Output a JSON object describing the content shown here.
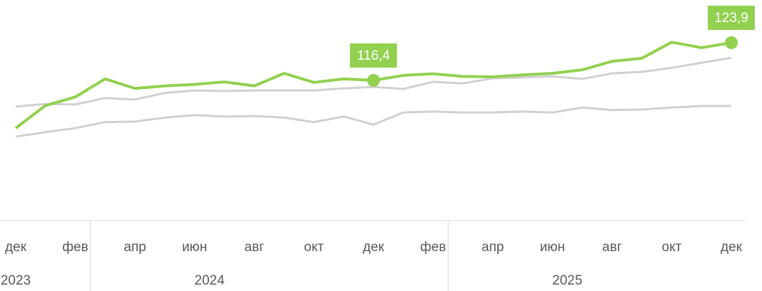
{
  "chart_data": {
    "type": "line",
    "categories": [
      "дек",
      null,
      "фев",
      null,
      "апр",
      null,
      "июн",
      null,
      "авг",
      null,
      "окт",
      null,
      "дек",
      null,
      "фев",
      null,
      "апр",
      null,
      "июн",
      null,
      "авг",
      null,
      "окт",
      null,
      "дек"
    ],
    "x_groups": [
      {
        "label": "2023",
        "count": 1
      },
      {
        "label": "2024",
        "count": 12
      },
      {
        "label": "2025",
        "count": 12
      }
    ],
    "ylim": [
      88.5,
      132.4
    ],
    "series": [
      {
        "color": "#d0d0d0",
        "values": [
          111.2,
          111.7,
          111.6,
          112.9,
          112.6,
          113.9,
          114.4,
          114.3,
          114.4,
          114.4,
          114.4,
          114.8,
          115.1,
          114.7,
          116.1,
          115.8,
          116.8,
          117.0,
          117.2,
          116.7,
          117.8,
          118.1,
          118.9,
          119.9,
          120.9
        ]
      },
      {
        "color": "#d0d0d0",
        "values": [
          105.2,
          106.1,
          106.9,
          108.1,
          108.2,
          109.0,
          109.5,
          109.2,
          109.3,
          109.0,
          108.1,
          109.2,
          107.6,
          110.0,
          110.2,
          110.0,
          110.0,
          110.2,
          110.0,
          111.0,
          110.5,
          110.6,
          111.0,
          111.3,
          111.3
        ]
      },
      {
        "color": "#92d050",
        "values": [
          106.9,
          111.4,
          113.1,
          116.7,
          114.8,
          115.3,
          115.6,
          116.1,
          115.3,
          117.8,
          116.0,
          116.7,
          116.4,
          117.4,
          117.7,
          117.2,
          117.1,
          117.5,
          117.8,
          118.5,
          120.2,
          120.8,
          124.0,
          122.9,
          123.9
        ],
        "value_labels": [
          null,
          null,
          null,
          null,
          null,
          null,
          null,
          null,
          null,
          null,
          null,
          null,
          "116,4",
          null,
          null,
          null,
          null,
          null,
          null,
          null,
          null,
          null,
          null,
          null,
          "123,9"
        ]
      }
    ]
  }
}
